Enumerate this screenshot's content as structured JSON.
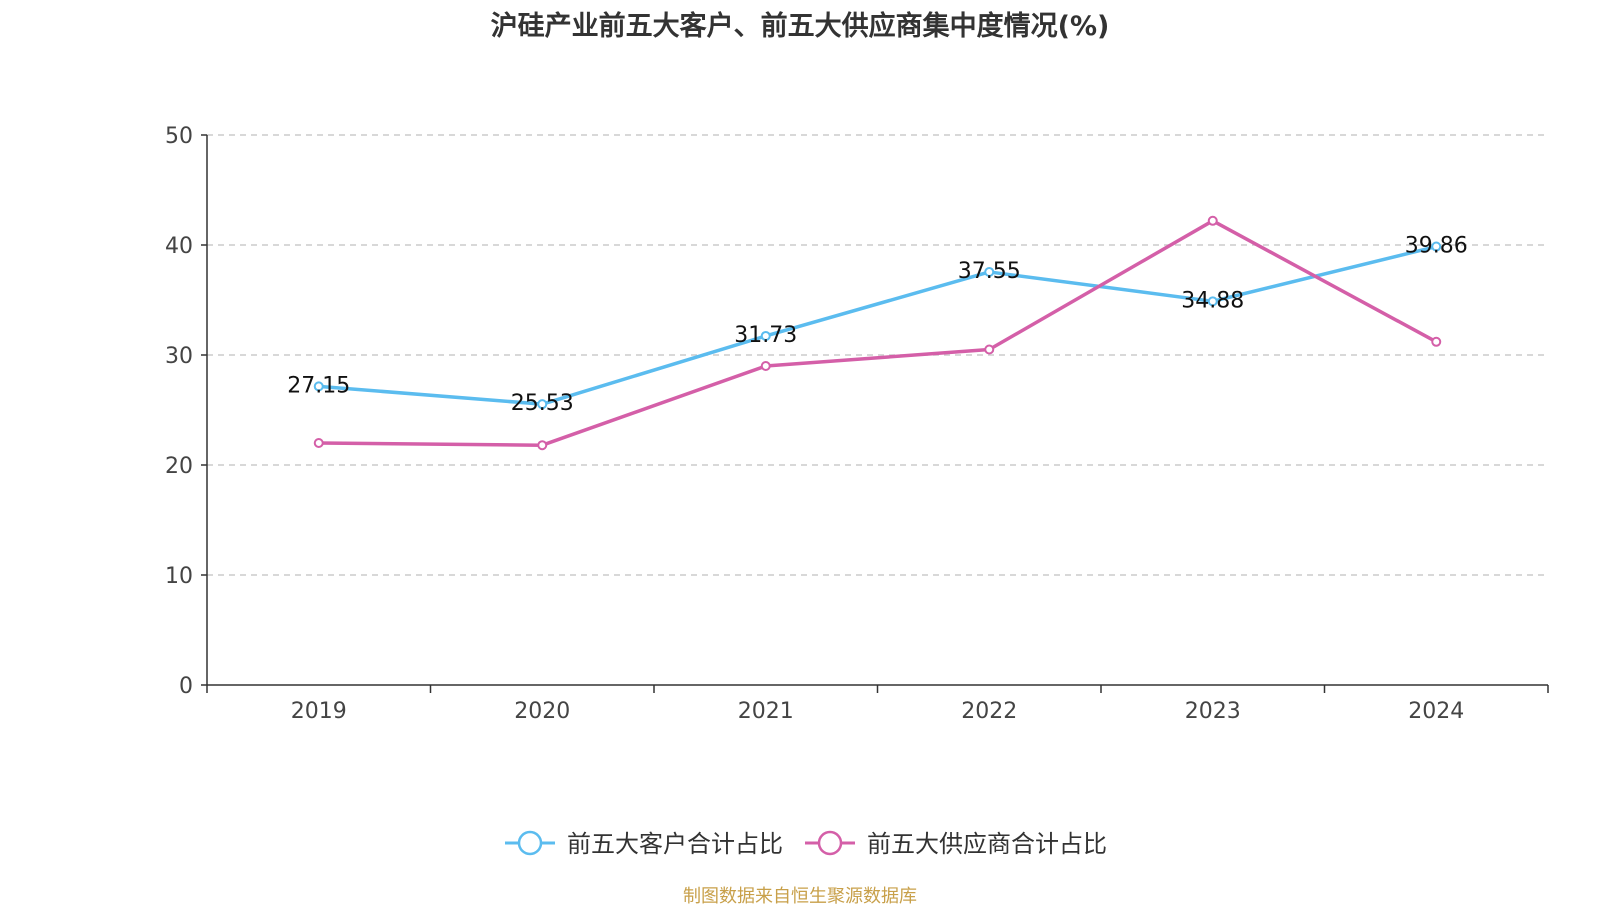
{
  "title": "沪硅产业前五大客户、前五大供应商集中度情况(%)",
  "source_note": "制图数据来自恒生聚源数据库",
  "colors": {
    "customers": "#5bbcef",
    "suppliers": "#d45fa8",
    "axis": "#333333",
    "grid": "#cccccc"
  },
  "chart_data": {
    "type": "line",
    "categories": [
      "2019",
      "2020",
      "2021",
      "2022",
      "2023",
      "2024"
    ],
    "ylim": [
      0,
      50
    ],
    "yticks": [
      0,
      10,
      20,
      30,
      40,
      50
    ],
    "grid": true,
    "legend": "bottom-center",
    "series": [
      {
        "name": "前五大客户合计占比",
        "values": [
          27.15,
          25.53,
          31.73,
          37.55,
          34.88,
          39.86
        ],
        "show_labels": true
      },
      {
        "name": "前五大供应商合计占比",
        "values": [
          22.0,
          21.8,
          29.0,
          30.5,
          42.2,
          31.2
        ],
        "show_labels": false
      }
    ]
  }
}
